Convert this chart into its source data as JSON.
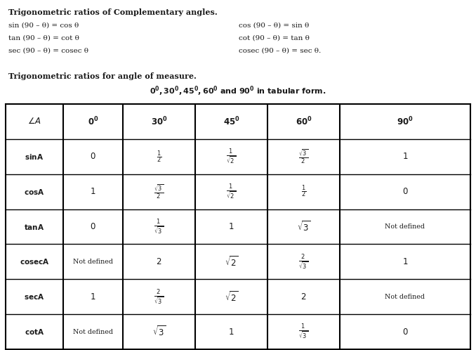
{
  "title1_bold": "Trigonometric ratios of Complementary angles",
  "title1_normal": ".",
  "comp_left": [
    "sin (90 – θ) = cos θ",
    "tan (90 – θ) = cot θ",
    "sec (90 – θ) = cosec θ"
  ],
  "comp_right": [
    "cos (90 – θ) = sin θ",
    "cot (90 – θ) = tan θ",
    "cosec (90 – θ) = sec θ."
  ],
  "title2_line1": "Trigonometric ratios for angle of measure.",
  "background_color": "#ffffff",
  "text_color": "#1a1a1a",
  "table_border_color": "#000000",
  "fs_title": 8.0,
  "fs_body": 7.5,
  "fs_table_label": 7.5,
  "fs_table_math": 8.5,
  "fs_table_notdef": 6.8
}
